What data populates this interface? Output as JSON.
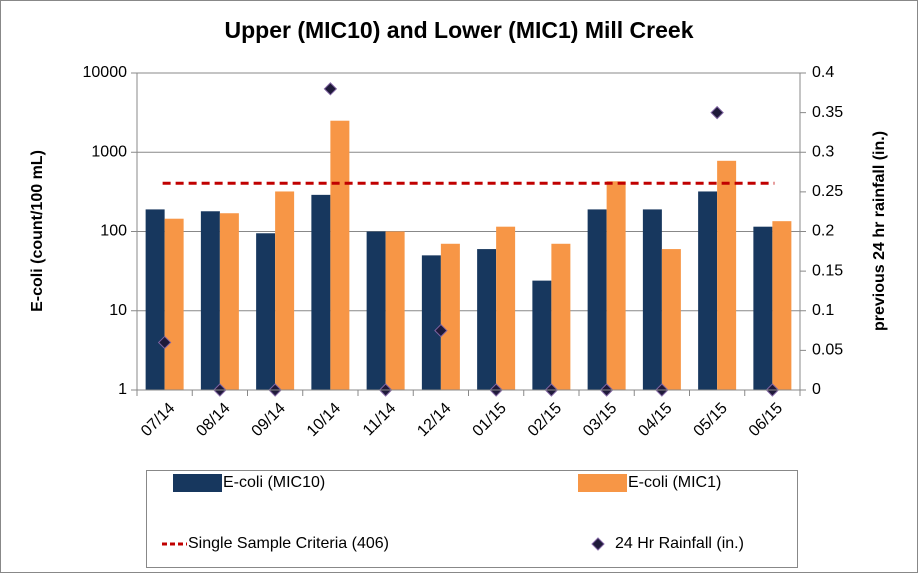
{
  "chart_data": {
    "type": "bar",
    "title": "Upper (MIC10) and Lower (MIC1) Mill Creek",
    "ylabel": "E-coli (count/100 mL)",
    "y2label": "previous 24 hr rainfall (in.)",
    "categories": [
      "07/14",
      "08/14",
      "09/14",
      "10/14",
      "11/14",
      "12/14",
      "01/15",
      "02/15",
      "03/15",
      "04/15",
      "05/15",
      "06/15"
    ],
    "series": [
      {
        "name": "E-coli (MIC10)",
        "type": "bar",
        "color": "#17375e",
        "values": [
          190,
          180,
          95,
          290,
          100,
          50,
          60,
          24,
          190,
          190,
          320,
          115
        ]
      },
      {
        "name": "E-coli (MIC1)",
        "type": "bar",
        "color": "#f79646",
        "values": [
          145,
          170,
          320,
          2500,
          100,
          70,
          115,
          70,
          430,
          60,
          780,
          135
        ]
      },
      {
        "name": "Single Sample Criteria (406)",
        "type": "line",
        "color": "#c00000",
        "value": 406
      },
      {
        "name": "24 Hr Rainfall (in.)",
        "type": "scatter",
        "color": "#1f1a3a",
        "axis": "y2",
        "values": [
          0.06,
          0,
          0,
          0.38,
          0,
          0.075,
          0,
          0,
          0,
          0,
          0.35,
          0
        ]
      }
    ],
    "ylim": [
      1,
      10000
    ],
    "yticks": [
      1,
      10,
      100,
      1000,
      10000
    ],
    "log_y": true,
    "grid": true,
    "y2lim": [
      0,
      0.4
    ],
    "y2ticks": [
      0,
      0.05,
      0.1,
      0.15,
      0.2,
      0.25,
      0.3,
      0.35,
      0.4
    ],
    "legend": "bottom"
  }
}
